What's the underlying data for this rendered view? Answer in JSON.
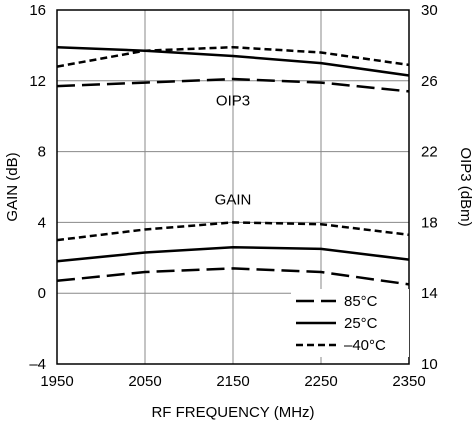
{
  "chart_data": {
    "type": "line",
    "xlabel": "RF FREQUENCY (MHz)",
    "ylabel_left": "GAIN (dB)",
    "ylabel_right": "OIP3 (dBm)",
    "xlim": [
      1950,
      2350
    ],
    "ylim_left": [
      -4,
      16
    ],
    "ylim_right": [
      10,
      30
    ],
    "x_ticks": [
      "1950",
      "2050",
      "2150",
      "2250",
      "2350"
    ],
    "y_ticks_left": [
      "–4",
      "0",
      "4",
      "8",
      "12",
      "16"
    ],
    "y_ticks_right": [
      "10",
      "14",
      "18",
      "22",
      "26",
      "30"
    ],
    "grid": true,
    "legend": {
      "placement": "bottom-right",
      "entries": [
        {
          "label": "85°C",
          "style": "long-dash"
        },
        {
          "label": "25°C",
          "style": "solid"
        },
        {
          "label": "–40°C",
          "style": "short-dash"
        }
      ]
    },
    "annotations": [
      {
        "text": "OIP3",
        "x": 2150,
        "y": 10.6,
        "axis": "left"
      },
      {
        "text": "GAIN",
        "x": 2150,
        "y": 5.0,
        "axis": "left"
      }
    ],
    "series": [
      {
        "group": "OIP3",
        "temp": "85°C",
        "style": "long-dash",
        "axis": "right",
        "x": [
          1950,
          2050,
          2150,
          2250,
          2350
        ],
        "y": [
          25.7,
          25.9,
          26.1,
          25.9,
          25.4
        ]
      },
      {
        "group": "OIP3",
        "temp": "25°C",
        "style": "solid",
        "axis": "right",
        "x": [
          1950,
          2050,
          2150,
          2250,
          2350
        ],
        "y": [
          27.9,
          27.7,
          27.4,
          27.0,
          26.3
        ]
      },
      {
        "group": "OIP3",
        "temp": "–40°C",
        "style": "short-dash",
        "axis": "right",
        "x": [
          1950,
          2050,
          2150,
          2250,
          2350
        ],
        "y": [
          26.8,
          27.7,
          27.9,
          27.6,
          26.9
        ]
      },
      {
        "group": "GAIN",
        "temp": "85°C",
        "style": "long-dash",
        "axis": "left",
        "x": [
          1950,
          2050,
          2150,
          2250,
          2350
        ],
        "y": [
          0.7,
          1.2,
          1.4,
          1.2,
          0.5
        ]
      },
      {
        "group": "GAIN",
        "temp": "25°C",
        "style": "solid",
        "axis": "left",
        "x": [
          1950,
          2050,
          2150,
          2250,
          2350
        ],
        "y": [
          1.8,
          2.3,
          2.6,
          2.5,
          1.9
        ]
      },
      {
        "group": "GAIN",
        "temp": "–40°C",
        "style": "short-dash",
        "axis": "left",
        "x": [
          1950,
          2050,
          2150,
          2250,
          2350
        ],
        "y": [
          3.0,
          3.6,
          4.0,
          3.9,
          3.3
        ]
      }
    ]
  }
}
